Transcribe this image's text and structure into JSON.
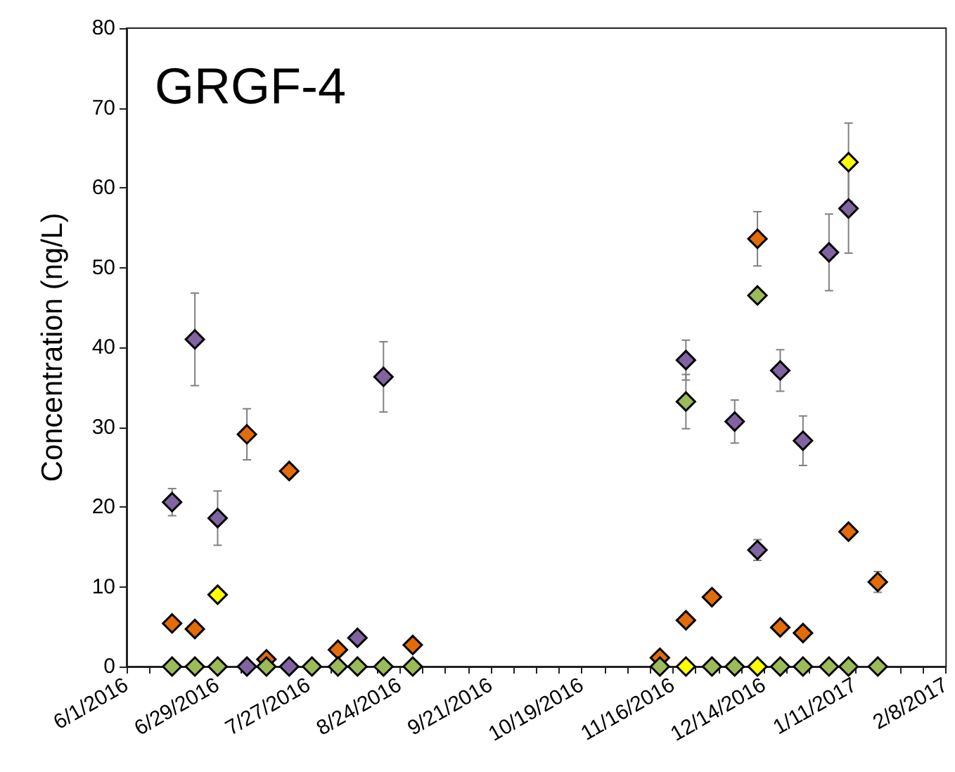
{
  "chart_data": {
    "type": "scatter",
    "title": "GRGF-4",
    "ylabel": "Concentration (ng/L)",
    "x": [
      "2016-06-15",
      "2016-06-22",
      "2016-06-29",
      "2016-07-08",
      "2016-07-14",
      "2016-07-21",
      "2016-07-28",
      "2016-08-05",
      "2016-08-11",
      "2016-08-19",
      "2016-08-28",
      "2016-11-12",
      "2016-11-20",
      "2016-11-28",
      "2016-12-05",
      "2016-12-12",
      "2016-12-19",
      "2016-12-26",
      "2017-01-03",
      "2017-01-09",
      "2017-01-18"
    ],
    "series": [
      {
        "color": "#8064a2",
        "values": [
          20.6,
          41.0,
          18.6,
          0,
          null,
          0,
          null,
          null,
          3.6,
          36.3,
          null,
          null,
          38.4,
          null,
          30.7,
          14.6,
          37.1,
          28.3,
          51.9,
          57.4,
          null
        ],
        "errors": [
          1.7,
          5.8,
          3.4,
          null,
          null,
          null,
          null,
          null,
          null,
          4.4,
          null,
          null,
          2.5,
          null,
          2.7,
          1.3,
          2.6,
          3.1,
          4.8,
          5.6,
          null
        ]
      },
      {
        "color": "#e36c09",
        "values": [
          5.4,
          4.7,
          null,
          29.1,
          0.9,
          24.5,
          null,
          2.1,
          null,
          null,
          2.7,
          1.1,
          5.8,
          8.7,
          null,
          53.6,
          4.9,
          4.2,
          null,
          16.9,
          10.6
        ],
        "errors": [
          null,
          null,
          null,
          3.2,
          null,
          null,
          null,
          null,
          null,
          null,
          null,
          null,
          null,
          null,
          null,
          3.4,
          null,
          null,
          null,
          null,
          1.3
        ]
      },
      {
        "color": "#ffff00",
        "values": [
          null,
          null,
          9.0,
          null,
          null,
          null,
          null,
          null,
          null,
          null,
          null,
          null,
          0,
          null,
          null,
          0,
          null,
          null,
          null,
          63.2,
          null
        ],
        "errors": [
          null,
          null,
          null,
          null,
          null,
          null,
          null,
          null,
          null,
          null,
          null,
          null,
          null,
          null,
          null,
          null,
          null,
          null,
          null,
          4.9,
          null
        ]
      },
      {
        "color": "#9bbb59",
        "values": [
          0,
          0,
          0,
          null,
          0,
          null,
          0,
          0,
          0,
          0,
          0,
          0,
          33.2,
          0,
          0,
          46.5,
          0,
          0,
          0,
          0,
          0
        ],
        "errors": [
          null,
          null,
          null,
          null,
          null,
          null,
          null,
          null,
          null,
          null,
          null,
          null,
          3.4,
          null,
          null,
          null,
          null,
          null,
          null,
          null,
          null
        ]
      }
    ],
    "xlim": [
      "2016-06-01",
      "2017-02-08"
    ],
    "xticks": [
      {
        "value": "2016-06-01",
        "label": "6/1/2016"
      },
      {
        "value": "2016-06-08",
        "label": null
      },
      {
        "value": "2016-06-15",
        "label": null
      },
      {
        "value": "2016-06-22",
        "label": null
      },
      {
        "value": "2016-06-29",
        "label": "6/29/2016"
      },
      {
        "value": "2016-07-06",
        "label": null
      },
      {
        "value": "2016-07-13",
        "label": null
      },
      {
        "value": "2016-07-20",
        "label": null
      },
      {
        "value": "2016-07-27",
        "label": "7/27/2016"
      },
      {
        "value": "2016-08-03",
        "label": null
      },
      {
        "value": "2016-08-10",
        "label": null
      },
      {
        "value": "2016-08-17",
        "label": null
      },
      {
        "value": "2016-08-24",
        "label": "8/24/2016"
      },
      {
        "value": "2016-08-31",
        "label": null
      },
      {
        "value": "2016-09-07",
        "label": null
      },
      {
        "value": "2016-09-14",
        "label": null
      },
      {
        "value": "2016-09-21",
        "label": "9/21/2016"
      },
      {
        "value": "2016-09-28",
        "label": null
      },
      {
        "value": "2016-10-05",
        "label": null
      },
      {
        "value": "2016-10-12",
        "label": null
      },
      {
        "value": "2016-10-19",
        "label": "10/19/2016"
      },
      {
        "value": "2016-10-26",
        "label": null
      },
      {
        "value": "2016-11-02",
        "label": null
      },
      {
        "value": "2016-11-09",
        "label": null
      },
      {
        "value": "2016-11-16",
        "label": "11/16/2016"
      },
      {
        "value": "2016-11-23",
        "label": null
      },
      {
        "value": "2016-11-30",
        "label": null
      },
      {
        "value": "2016-12-07",
        "label": null
      },
      {
        "value": "2016-12-14",
        "label": "12/14/2016"
      },
      {
        "value": "2016-12-21",
        "label": null
      },
      {
        "value": "2016-12-28",
        "label": null
      },
      {
        "value": "2017-01-04",
        "label": null
      },
      {
        "value": "2017-01-11",
        "label": "1/11/2017"
      },
      {
        "value": "2017-01-18",
        "label": null
      },
      {
        "value": "2017-01-25",
        "label": null
      },
      {
        "value": "2017-02-01",
        "label": null
      },
      {
        "value": "2017-02-08",
        "label": "2/8/2017"
      }
    ],
    "ylim": [
      0,
      80
    ],
    "yticks": [
      0,
      10,
      20,
      30,
      40,
      50,
      60,
      70,
      80
    ],
    "grid": false,
    "marker": "diamond"
  }
}
